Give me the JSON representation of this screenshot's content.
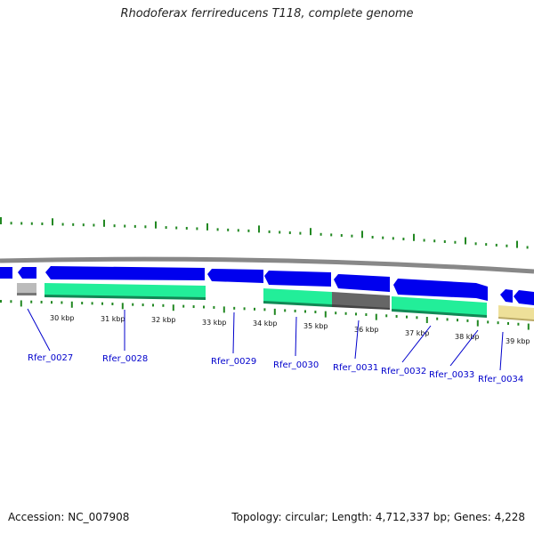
{
  "title": "Rhodoferax ferrireducens T118, complete genome",
  "footer": {
    "accession": "Accession: NC_007908",
    "summary": "Topology: circular; Length: 4,712,337 bp; Genes: 4,228"
  },
  "colors": {
    "forward_gene": "#0000ee",
    "rna_gene": "#22ee99",
    "pseudo_gene": "#666666",
    "light_gene": "#bbbbbb",
    "yellow_gene": "#eee099",
    "backbone": "#888888",
    "tick": "#228822",
    "label": "#0000cc"
  },
  "kbp_scale": [
    {
      "text": "30 kbp"
    },
    {
      "text": "31 kbp"
    },
    {
      "text": "32 kbp"
    },
    {
      "text": "33 kbp"
    },
    {
      "text": "34 kbp"
    },
    {
      "text": "35 kbp"
    },
    {
      "text": "36 kbp"
    },
    {
      "text": "37 kbp"
    },
    {
      "text": "38 kbp"
    },
    {
      "text": "39 kbp"
    }
  ],
  "genes": [
    {
      "name": "Rfer_0027"
    },
    {
      "name": "Rfer_0028"
    },
    {
      "name": "Rfer_0029"
    },
    {
      "name": "Rfer_0030"
    },
    {
      "name": "Rfer_0031"
    },
    {
      "name": "Rfer_0032"
    },
    {
      "name": "Rfer_0033"
    },
    {
      "name": "Rfer_0034"
    }
  ]
}
